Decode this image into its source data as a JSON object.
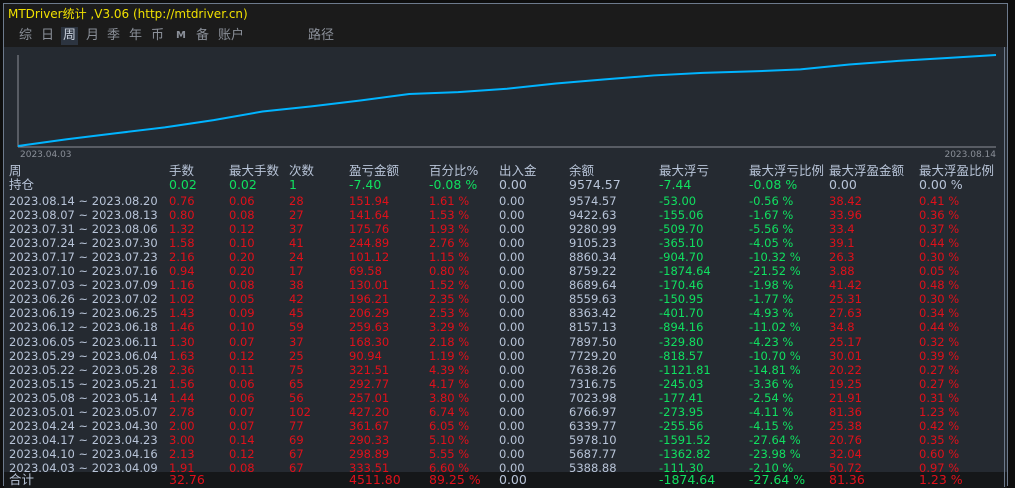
{
  "title": "MTDriver统计 ,V3.06 (http://mtdriver.cn)",
  "tabs": [
    {
      "label": "综"
    },
    {
      "label": "日"
    },
    {
      "label": "周",
      "active": true
    },
    {
      "label": "月"
    },
    {
      "label": "季"
    },
    {
      "label": "年"
    },
    {
      "label": "币"
    },
    {
      "label": "M"
    },
    {
      "label": "备"
    },
    {
      "label": "账户"
    },
    {
      "label": "路径"
    }
  ],
  "chart": {
    "line_color": "#00b4ff",
    "x_start_label": "2023.04.03",
    "x_end_label": "2023.08.14"
  },
  "colors": {
    "red": "#e0101a",
    "green": "#10e060",
    "text": "#b8c4d8"
  },
  "table": {
    "columns": [
      "周",
      "手数",
      "最大手数",
      "次数",
      "盈亏金额",
      "百分比%",
      "出入金",
      "余额",
      "最大浮亏",
      "最大浮亏比例",
      "最大浮盈金额",
      "最大浮盈比例"
    ],
    "holding": [
      "持仓",
      "0.02",
      "0.02",
      "1",
      "-7.40",
      "-0.08 %",
      "0.00",
      "9574.57",
      "-7.44",
      "-0.08 %",
      "0.00",
      "0.00 %"
    ],
    "rows": [
      [
        "2023.08.14 ~ 2023.08.20",
        "0.76",
        "0.06",
        "28",
        "151.94",
        "1.61 %",
        "0.00",
        "9574.57",
        "-53.00",
        "-0.56 %",
        "38.42",
        "0.41 %"
      ],
      [
        "2023.08.07 ~ 2023.08.13",
        "0.80",
        "0.08",
        "27",
        "141.64",
        "1.53 %",
        "0.00",
        "9422.63",
        "-155.06",
        "-1.67 %",
        "33.96",
        "0.36 %"
      ],
      [
        "2023.07.31 ~ 2023.08.06",
        "1.32",
        "0.12",
        "37",
        "175.76",
        "1.93 %",
        "0.00",
        "9280.99",
        "-509.70",
        "-5.56 %",
        "33.4",
        "0.37 %"
      ],
      [
        "2023.07.24 ~ 2023.07.30",
        "1.58",
        "0.10",
        "41",
        "244.89",
        "2.76 %",
        "0.00",
        "9105.23",
        "-365.10",
        "-4.05 %",
        "39.1",
        "0.44 %"
      ],
      [
        "2023.07.17 ~ 2023.07.23",
        "2.16",
        "0.20",
        "24",
        "101.12",
        "1.15 %",
        "0.00",
        "8860.34",
        "-904.70",
        "-10.32 %",
        "26.3",
        "0.30 %"
      ],
      [
        "2023.07.10 ~ 2023.07.16",
        "0.94",
        "0.20",
        "17",
        "69.58",
        "0.80 %",
        "0.00",
        "8759.22",
        "-1874.64",
        "-21.52 %",
        "3.88",
        "0.05 %"
      ],
      [
        "2023.07.03 ~ 2023.07.09",
        "1.16",
        "0.08",
        "38",
        "130.01",
        "1.52 %",
        "0.00",
        "8689.64",
        "-170.46",
        "-1.98 %",
        "41.42",
        "0.48 %"
      ],
      [
        "2023.06.26 ~ 2023.07.02",
        "1.02",
        "0.05",
        "42",
        "196.21",
        "2.35 %",
        "0.00",
        "8559.63",
        "-150.95",
        "-1.77 %",
        "25.31",
        "0.30 %"
      ],
      [
        "2023.06.19 ~ 2023.06.25",
        "1.43",
        "0.09",
        "45",
        "206.29",
        "2.53 %",
        "0.00",
        "8363.42",
        "-401.70",
        "-4.93 %",
        "27.63",
        "0.34 %"
      ],
      [
        "2023.06.12 ~ 2023.06.18",
        "1.46",
        "0.10",
        "59",
        "259.63",
        "3.29 %",
        "0.00",
        "8157.13",
        "-894.16",
        "-11.02 %",
        "34.8",
        "0.44 %"
      ],
      [
        "2023.06.05 ~ 2023.06.11",
        "1.30",
        "0.07",
        "37",
        "168.30",
        "2.18 %",
        "0.00",
        "7897.50",
        "-329.80",
        "-4.23 %",
        "25.17",
        "0.32 %"
      ],
      [
        "2023.05.29 ~ 2023.06.04",
        "1.63",
        "0.12",
        "25",
        "90.94",
        "1.19 %",
        "0.00",
        "7729.20",
        "-818.57",
        "-10.70 %",
        "30.01",
        "0.39 %"
      ],
      [
        "2023.05.22 ~ 2023.05.28",
        "2.36",
        "0.11",
        "75",
        "321.51",
        "4.39 %",
        "0.00",
        "7638.26",
        "-1121.81",
        "-14.81 %",
        "20.22",
        "0.27 %"
      ],
      [
        "2023.05.15 ~ 2023.05.21",
        "1.56",
        "0.06",
        "65",
        "292.77",
        "4.17 %",
        "0.00",
        "7316.75",
        "-245.03",
        "-3.36 %",
        "19.25",
        "0.27 %"
      ],
      [
        "2023.05.08 ~ 2023.05.14",
        "1.44",
        "0.06",
        "56",
        "257.01",
        "3.80 %",
        "0.00",
        "7023.98",
        "-177.41",
        "-2.54 %",
        "21.91",
        "0.31 %"
      ],
      [
        "2023.05.01 ~ 2023.05.07",
        "2.78",
        "0.07",
        "102",
        "427.20",
        "6.74 %",
        "0.00",
        "6766.97",
        "-273.95",
        "-4.11 %",
        "81.36",
        "1.23 %"
      ],
      [
        "2023.04.24 ~ 2023.04.30",
        "2.00",
        "0.07",
        "77",
        "361.67",
        "6.05 %",
        "0.00",
        "6339.77",
        "-255.56",
        "-4.15 %",
        "25.38",
        "0.42 %"
      ],
      [
        "2023.04.17 ~ 2023.04.23",
        "3.00",
        "0.14",
        "69",
        "290.33",
        "5.10 %",
        "0.00",
        "5978.10",
        "-1591.52",
        "-27.64 %",
        "20.76",
        "0.35 %"
      ],
      [
        "2023.04.10 ~ 2023.04.16",
        "2.13",
        "0.12",
        "67",
        "298.89",
        "5.55 %",
        "0.00",
        "5687.77",
        "-1362.82",
        "-23.98 %",
        "32.04",
        "0.60 %"
      ],
      [
        "2023.04.03 ~ 2023.04.09",
        "1.91",
        "0.08",
        "67",
        "333.51",
        "6.60 %",
        "0.00",
        "5388.88",
        "-111.30",
        "-2.10 %",
        "50.72",
        "0.97 %"
      ]
    ],
    "total": [
      "合计",
      "32.76",
      "",
      "",
      "4511.80",
      "89.25 %",
      "0.00",
      "",
      "-1874.64",
      "-27.64 %",
      "81.36",
      "1.23 %"
    ]
  }
}
